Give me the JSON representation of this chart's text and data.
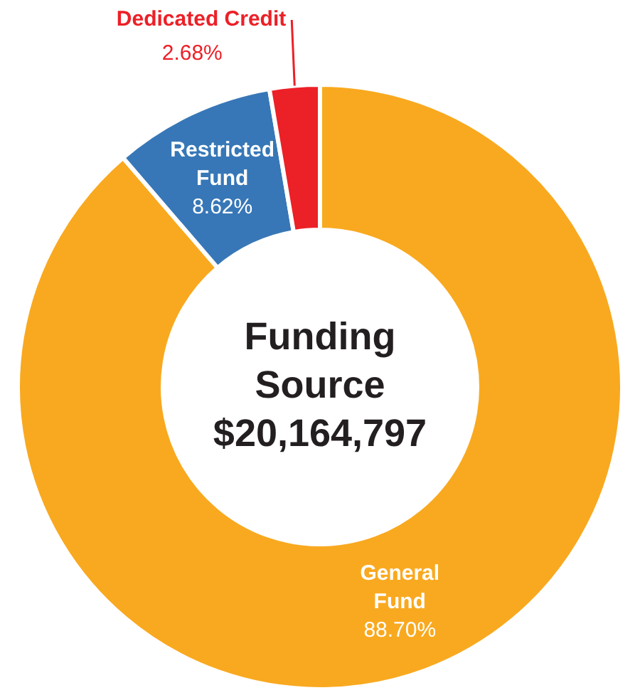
{
  "chart_data": {
    "type": "donut",
    "title": "Funding Source",
    "subtitle": "$20,164,797",
    "categories": [
      "General Fund",
      "Restricted Fund",
      "Dedicated Credit"
    ],
    "values": [
      88.7,
      8.62,
      2.68
    ],
    "colors": [
      "#f9a91f",
      "#3777b7",
      "#ec2027"
    ],
    "value_labels": [
      "88.70%",
      "8.62%",
      "2.68%"
    ],
    "legend": false
  }
}
